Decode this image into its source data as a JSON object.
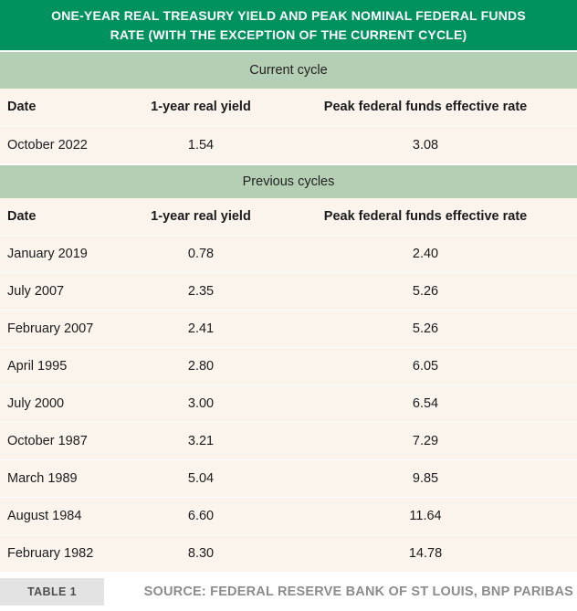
{
  "header": {
    "title": "ONE-YEAR REAL TREASURY YIELD AND PEAK NOMINAL FEDERAL FUNDS RATE (WITH THE EXCEPTION OF THE CURRENT CYCLE)"
  },
  "sections": [
    {
      "label": "Current cycle",
      "columns": [
        "Date",
        "1-year real yield",
        "Peak federal funds effective rate"
      ],
      "rows": [
        [
          "October 2022",
          "1.54",
          "3.08"
        ]
      ]
    },
    {
      "label": "Previous cycles",
      "columns": [
        "Date",
        "1-year real yield",
        "Peak federal funds effective rate"
      ],
      "rows": [
        [
          "January 2019",
          "0.78",
          "2.40"
        ],
        [
          "July 2007",
          "2.35",
          "5.26"
        ],
        [
          "February 2007",
          "2.41",
          "5.26"
        ],
        [
          "April 1995",
          "2.80",
          "6.05"
        ],
        [
          "July 2000",
          "3.00",
          "6.54"
        ],
        [
          "October 1987",
          "3.21",
          "7.29"
        ],
        [
          "March 1989",
          "5.04",
          "9.85"
        ],
        [
          "August 1984",
          "6.60",
          "11.64"
        ],
        [
          "February 1982",
          "8.30",
          "14.78"
        ]
      ]
    }
  ],
  "footer": {
    "badge": "TABLE 1",
    "source": "SOURCE: FEDERAL RESERVE BANK OF ST LOUIS, BNP PARIBAS"
  },
  "colors": {
    "title_bg": "#00925E",
    "section_bg": "#B5CFB4",
    "row_bg": "#FBF4ED",
    "text": "#1B1B1B",
    "source_text": "#8C8C8C",
    "badge_bg": "#E3E3E3",
    "badge_text": "#4F4F4F"
  },
  "chart_data": {
    "type": "table",
    "title": "ONE-YEAR REAL TREASURY YIELD AND PEAK NOMINAL FEDERAL FUNDS RATE (WITH THE EXCEPTION OF THE CURRENT CYCLE)",
    "columns": [
      "Date",
      "1-year real yield",
      "Peak federal funds effective rate"
    ],
    "groups": [
      {
        "name": "Current cycle",
        "rows": [
          {
            "date": "October 2022",
            "one_year_real_yield": 1.54,
            "peak_fed_funds_effective_rate": 3.08
          }
        ]
      },
      {
        "name": "Previous cycles",
        "rows": [
          {
            "date": "January 2019",
            "one_year_real_yield": 0.78,
            "peak_fed_funds_effective_rate": 2.4
          },
          {
            "date": "July 2007",
            "one_year_real_yield": 2.35,
            "peak_fed_funds_effective_rate": 5.26
          },
          {
            "date": "February 2007",
            "one_year_real_yield": 2.41,
            "peak_fed_funds_effective_rate": 5.26
          },
          {
            "date": "April 1995",
            "one_year_real_yield": 2.8,
            "peak_fed_funds_effective_rate": 6.05
          },
          {
            "date": "July 2000",
            "one_year_real_yield": 3.0,
            "peak_fed_funds_effective_rate": 6.54
          },
          {
            "date": "October 1987",
            "one_year_real_yield": 3.21,
            "peak_fed_funds_effective_rate": 7.29
          },
          {
            "date": "March 1989",
            "one_year_real_yield": 5.04,
            "peak_fed_funds_effective_rate": 9.85
          },
          {
            "date": "August 1984",
            "one_year_real_yield": 6.6,
            "peak_fed_funds_effective_rate": 11.64
          },
          {
            "date": "February 1982",
            "one_year_real_yield": 8.3,
            "peak_fed_funds_effective_rate": 14.78
          }
        ]
      }
    ],
    "source": "SOURCE: FEDERAL RESERVE BANK OF ST LOUIS, BNP PARIBAS",
    "table_label": "TABLE 1"
  }
}
